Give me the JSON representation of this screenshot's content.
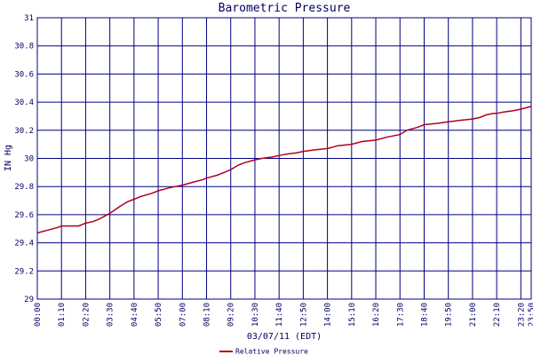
{
  "chart_data": {
    "type": "line",
    "title": "Barometric Pressure",
    "xlabel": "03/07/11 (EDT)",
    "ylabel": "IN Hg",
    "ylim": [
      29,
      31
    ],
    "y_ticks": [
      "29",
      "29.2",
      "29.4",
      "29.6",
      "29.8",
      "30",
      "30.2",
      "30.4",
      "30.6",
      "30.8",
      "31"
    ],
    "x_ticks": [
      "00:00",
      "01:10",
      "02:20",
      "03:30",
      "04:40",
      "05:50",
      "07:00",
      "08:10",
      "09:20",
      "10:30",
      "11:40",
      "12:50",
      "14:00",
      "15:10",
      "16:20",
      "17:30",
      "18:40",
      "19:50",
      "21:00",
      "22:10",
      "23:20",
      "23:50"
    ],
    "grid": true,
    "legend_position": "bottom-center",
    "colors": {
      "series": "#b00020",
      "grid": "#000080",
      "text": "#000060"
    },
    "series": [
      {
        "name": "Relative Pressure",
        "x": [
          "00:00",
          "00:30",
          "01:00",
          "01:10",
          "01:30",
          "02:00",
          "02:20",
          "02:40",
          "03:00",
          "03:30",
          "04:00",
          "04:20",
          "04:40",
          "05:00",
          "05:30",
          "05:50",
          "06:20",
          "07:00",
          "07:30",
          "08:00",
          "08:10",
          "08:40",
          "09:00",
          "09:20",
          "09:40",
          "10:00",
          "10:30",
          "10:50",
          "11:20",
          "11:40",
          "12:00",
          "12:30",
          "12:50",
          "13:20",
          "14:00",
          "14:30",
          "15:10",
          "15:40",
          "16:20",
          "16:50",
          "17:30",
          "17:50",
          "18:20",
          "18:40",
          "19:20",
          "19:50",
          "20:20",
          "21:00",
          "21:20",
          "21:40",
          "22:00",
          "22:10",
          "22:30",
          "23:00",
          "23:20",
          "23:50"
        ],
        "values": [
          29.47,
          29.49,
          29.51,
          29.52,
          29.52,
          29.52,
          29.54,
          29.55,
          29.57,
          29.61,
          29.66,
          29.69,
          29.71,
          29.73,
          29.75,
          29.77,
          29.79,
          29.81,
          29.83,
          29.85,
          29.86,
          29.88,
          29.9,
          29.92,
          29.95,
          29.97,
          29.99,
          30.0,
          30.01,
          30.02,
          30.03,
          30.04,
          30.05,
          30.06,
          30.07,
          30.09,
          30.1,
          30.12,
          30.13,
          30.15,
          30.17,
          30.2,
          30.22,
          30.24,
          30.25,
          30.26,
          30.27,
          30.28,
          30.29,
          30.31,
          30.32,
          30.32,
          30.33,
          30.34,
          30.35,
          30.37
        ]
      }
    ]
  }
}
